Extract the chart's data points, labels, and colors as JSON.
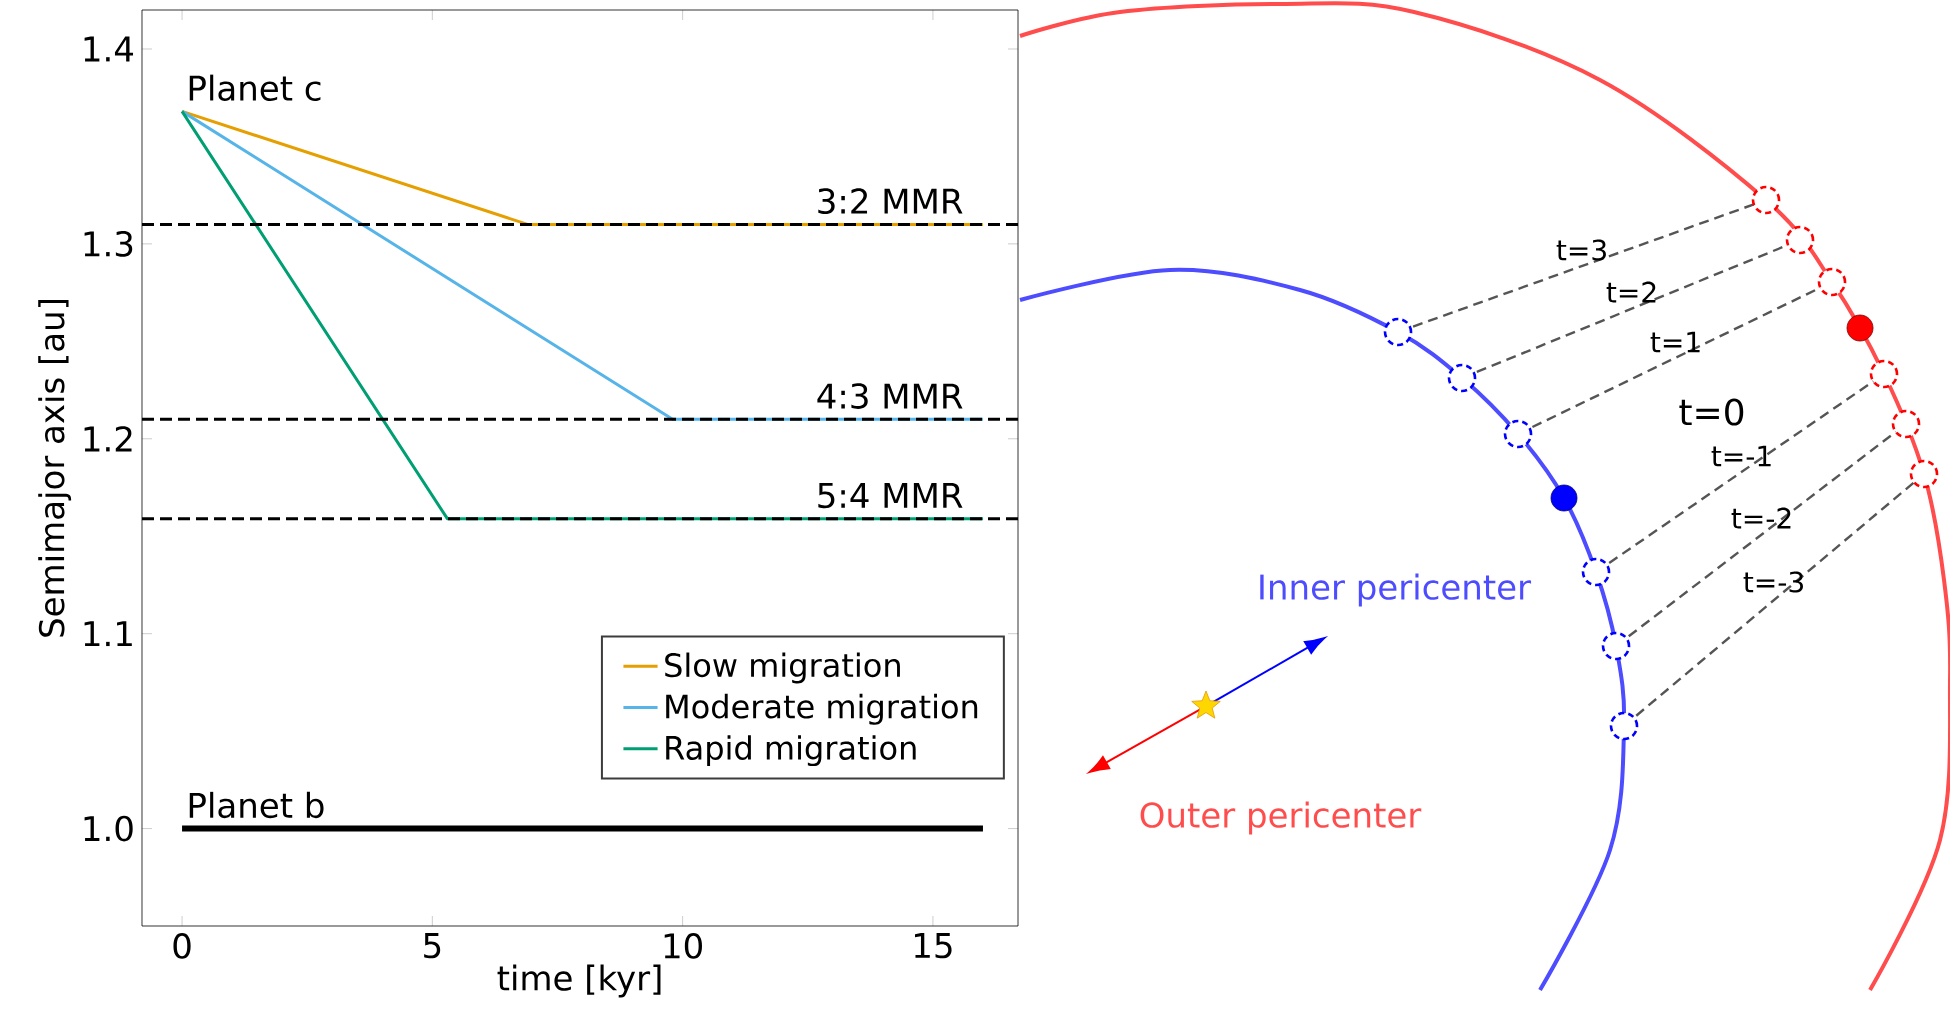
{
  "chart_data": [
    {
      "type": "line",
      "xlabel": "time [kyr]",
      "ylabel": "Semimajor axis [au]",
      "xlim": [
        -0.8,
        16.7
      ],
      "ylim": [
        0.95,
        1.42
      ],
      "xticks": [
        0,
        5,
        10,
        15
      ],
      "yticks": [
        {
          "value": 1.0,
          "label": "1.0"
        },
        1.1,
        1.2,
        1.3,
        1.4
      ],
      "legend": "bottom right",
      "line_style": "solid",
      "series": [
        {
          "name": "Slow migration",
          "color": "#e69f00",
          "x": [
            0,
            6.9,
            16
          ],
          "values": [
            1.368,
            1.31,
            1.31
          ]
        },
        {
          "name": "Moderate migration",
          "color": "#56b4e9",
          "x": [
            0,
            9.8,
            16
          ],
          "values": [
            1.368,
            1.21,
            1.21
          ]
        },
        {
          "name": "Rapid migration",
          "color": "#009e73",
          "x": [
            0,
            5.3,
            16
          ],
          "values": [
            1.368,
            1.159,
            1.159
          ]
        },
        {
          "color": "#000000",
          "x": [
            0,
            16
          ],
          "values": [
            1.0,
            1.0
          ]
        }
      ],
      "ref_lines": [
        {
          "axis": "y",
          "value": 1.31,
          "color": "#000000",
          "line_style": "dashed"
        },
        {
          "axis": "y",
          "value": 1.21,
          "color": "#000000",
          "line_style": "dashed"
        },
        {
          "axis": "y",
          "value": 1.159,
          "color": "#000000",
          "line_style": "dashed"
        }
      ],
      "annotations": [
        "Planet c",
        "3:2 MMR",
        "4:3 MMR",
        "5:4 MMR",
        "Planet b"
      ]
    },
    {
      "type": "other",
      "annotations": [
        "t=3",
        "t=2",
        "t=1",
        "t=0",
        "t=-1",
        "t=-2",
        "t=-3",
        "Inner pericenter",
        "Outer pericenter"
      ]
    }
  ]
}
